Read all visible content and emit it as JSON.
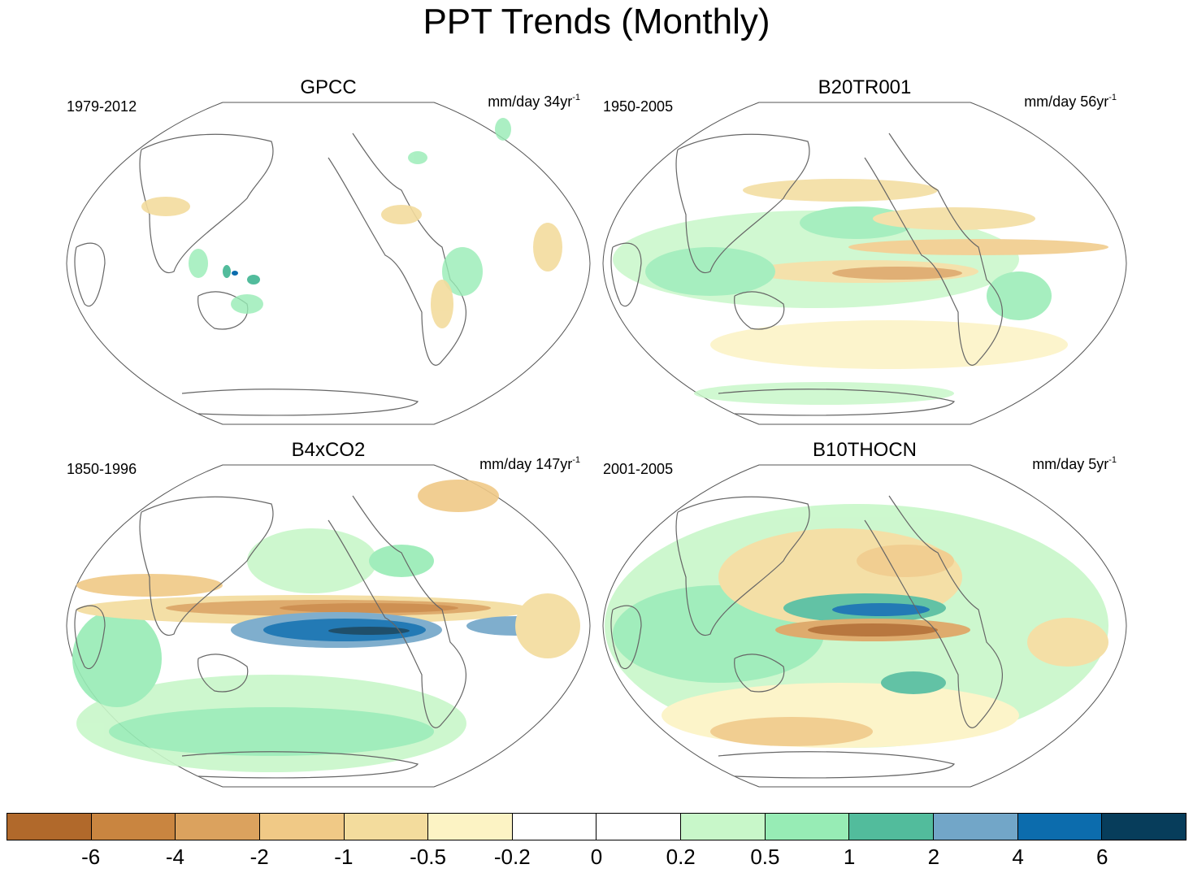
{
  "title": "PPT Trends (Monthly)",
  "panels": [
    {
      "name": "GPCC",
      "period": "1979-2012",
      "units": "mm/day 34yr",
      "units_exp": "-1"
    },
    {
      "name": "B20TR001",
      "period": "1950-2005",
      "units": "mm/day 56yr",
      "units_exp": "-1"
    },
    {
      "name": "B4xCO2",
      "period": "1850-1996",
      "units": "mm/day 147yr",
      "units_exp": "-1"
    },
    {
      "name": "B10THOCN",
      "period": "2001-2005",
      "units": "mm/day 5yr",
      "units_exp": "-1"
    }
  ],
  "colorbar": {
    "colors": [
      "#b1692b",
      "#c98540",
      "#dba25e",
      "#f0c986",
      "#f3dc9d",
      "#fcf3c4",
      "#ffffff",
      "#ffffff",
      "#c8f7c9",
      "#97ecb5",
      "#52bc9c",
      "#72a6c8",
      "#0c6cad",
      "#073d5b"
    ],
    "labels": [
      "-6",
      "-4",
      "-2",
      "-1",
      "-0.5",
      "-0.2",
      "0",
      "0.2",
      "0.5",
      "1",
      "2",
      "4",
      "6"
    ]
  }
}
